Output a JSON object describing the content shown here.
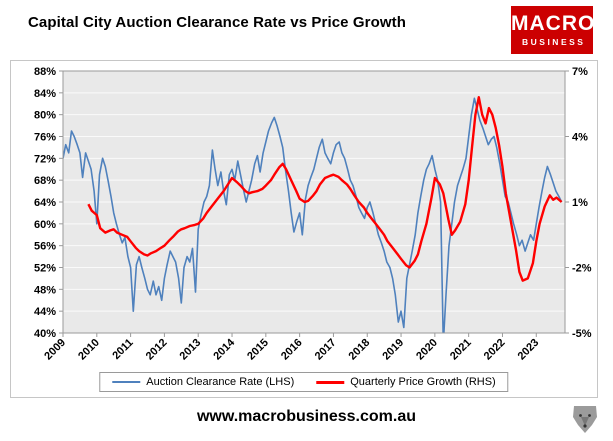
{
  "title": "Capital City Auction Clearance Rate vs Price Growth",
  "logo": {
    "line1": "MACRO",
    "line2": "BUSINESS",
    "bg_color": "#cc0001",
    "text_color": "#ffffff"
  },
  "footer": {
    "url": "www.macrobusiness.com.au"
  },
  "chart_data": {
    "type": "line",
    "title": "Capital City Auction Clearance Rate vs Price Growth",
    "plot_bg": "#e9e9e9",
    "grid_color": "#fafafa",
    "axis_color": "#9a9a9a",
    "legend_position": "bottom",
    "x_axis": {
      "min": 2009,
      "max": 2023.85,
      "ticks": [
        "2009",
        "2010",
        "2011",
        "2012",
        "2013",
        "2014",
        "2015",
        "2016",
        "2017",
        "2018",
        "2019",
        "2020",
        "2021",
        "2022",
        "2023"
      ]
    },
    "left_axis": {
      "min": 40,
      "max": 88,
      "ticks": [
        "40%",
        "44%",
        "48%",
        "52%",
        "56%",
        "60%",
        "64%",
        "68%",
        "72%",
        "76%",
        "80%",
        "84%",
        "88%"
      ]
    },
    "right_axis": {
      "min": -5,
      "max": 7,
      "ticks": [
        "-5%",
        "-2%",
        "1%",
        "4%",
        "7%"
      ]
    },
    "series": [
      {
        "name": "Auction Clearance Rate (LHS)",
        "axis": "left",
        "color": "#4f81bd",
        "width": 1.6,
        "points": [
          [
            2009.0,
            72
          ],
          [
            2009.08,
            74.5
          ],
          [
            2009.17,
            73
          ],
          [
            2009.25,
            77
          ],
          [
            2009.33,
            76
          ],
          [
            2009.42,
            74.5
          ],
          [
            2009.5,
            73
          ],
          [
            2009.58,
            68.5
          ],
          [
            2009.67,
            73
          ],
          [
            2009.75,
            71.5
          ],
          [
            2009.83,
            70
          ],
          [
            2009.92,
            66
          ],
          [
            2010.0,
            60
          ],
          [
            2010.08,
            69
          ],
          [
            2010.17,
            72
          ],
          [
            2010.25,
            70.5
          ],
          [
            2010.33,
            68
          ],
          [
            2010.42,
            65
          ],
          [
            2010.5,
            62
          ],
          [
            2010.58,
            60
          ],
          [
            2010.67,
            58
          ],
          [
            2010.75,
            56.5
          ],
          [
            2010.83,
            57.5
          ],
          [
            2010.92,
            54
          ],
          [
            2011.0,
            52
          ],
          [
            2011.08,
            44
          ],
          [
            2011.17,
            52.5
          ],
          [
            2011.25,
            54
          ],
          [
            2011.33,
            52
          ],
          [
            2011.42,
            50
          ],
          [
            2011.5,
            48
          ],
          [
            2011.58,
            47
          ],
          [
            2011.67,
            49.5
          ],
          [
            2011.75,
            47
          ],
          [
            2011.83,
            48.5
          ],
          [
            2011.92,
            46
          ],
          [
            2012.0,
            50
          ],
          [
            2012.08,
            52.5
          ],
          [
            2012.17,
            55
          ],
          [
            2012.25,
            54
          ],
          [
            2012.33,
            53
          ],
          [
            2012.42,
            50
          ],
          [
            2012.5,
            45.5
          ],
          [
            2012.58,
            52
          ],
          [
            2012.67,
            54
          ],
          [
            2012.75,
            53
          ],
          [
            2012.83,
            55.5
          ],
          [
            2012.92,
            47.5
          ],
          [
            2013.0,
            59
          ],
          [
            2013.08,
            61.5
          ],
          [
            2013.17,
            64
          ],
          [
            2013.25,
            65
          ],
          [
            2013.33,
            67
          ],
          [
            2013.42,
            73.5
          ],
          [
            2013.5,
            70
          ],
          [
            2013.58,
            67
          ],
          [
            2013.67,
            69.5
          ],
          [
            2013.75,
            66
          ],
          [
            2013.83,
            63.5
          ],
          [
            2013.92,
            69
          ],
          [
            2014.0,
            70
          ],
          [
            2014.08,
            68
          ],
          [
            2014.17,
            71.5
          ],
          [
            2014.25,
            69
          ],
          [
            2014.33,
            66.5
          ],
          [
            2014.42,
            64
          ],
          [
            2014.5,
            66
          ],
          [
            2014.58,
            68
          ],
          [
            2014.67,
            71
          ],
          [
            2014.75,
            72.5
          ],
          [
            2014.83,
            69.5
          ],
          [
            2014.92,
            73
          ],
          [
            2015.0,
            75
          ],
          [
            2015.08,
            77
          ],
          [
            2015.17,
            78.5
          ],
          [
            2015.25,
            79.5
          ],
          [
            2015.33,
            78
          ],
          [
            2015.42,
            76
          ],
          [
            2015.5,
            74
          ],
          [
            2015.58,
            70
          ],
          [
            2015.67,
            66
          ],
          [
            2015.75,
            62
          ],
          [
            2015.83,
            58.5
          ],
          [
            2015.92,
            60.5
          ],
          [
            2016.0,
            62
          ],
          [
            2016.08,
            58
          ],
          [
            2016.17,
            64.5
          ],
          [
            2016.25,
            67
          ],
          [
            2016.33,
            68.5
          ],
          [
            2016.42,
            70
          ],
          [
            2016.5,
            72
          ],
          [
            2016.58,
            74
          ],
          [
            2016.67,
            75.5
          ],
          [
            2016.75,
            73
          ],
          [
            2016.83,
            72
          ],
          [
            2016.92,
            71
          ],
          [
            2017.0,
            73
          ],
          [
            2017.08,
            74.5
          ],
          [
            2017.17,
            75
          ],
          [
            2017.25,
            73
          ],
          [
            2017.33,
            72
          ],
          [
            2017.42,
            70
          ],
          [
            2017.5,
            68
          ],
          [
            2017.58,
            67
          ],
          [
            2017.67,
            65
          ],
          [
            2017.75,
            63
          ],
          [
            2017.83,
            62
          ],
          [
            2017.92,
            61
          ],
          [
            2018.0,
            63
          ],
          [
            2018.08,
            64
          ],
          [
            2018.17,
            62
          ],
          [
            2018.25,
            60
          ],
          [
            2018.33,
            58
          ],
          [
            2018.42,
            56.5
          ],
          [
            2018.5,
            55
          ],
          [
            2018.58,
            53
          ],
          [
            2018.67,
            52
          ],
          [
            2018.75,
            50
          ],
          [
            2018.83,
            47
          ],
          [
            2018.92,
            42
          ],
          [
            2019.0,
            44
          ],
          [
            2019.08,
            41
          ],
          [
            2019.17,
            50
          ],
          [
            2019.25,
            52.5
          ],
          [
            2019.33,
            55
          ],
          [
            2019.42,
            58
          ],
          [
            2019.5,
            62
          ],
          [
            2019.58,
            65
          ],
          [
            2019.67,
            68
          ],
          [
            2019.75,
            70
          ],
          [
            2019.83,
            71
          ],
          [
            2019.92,
            72.5
          ],
          [
            2020.0,
            70
          ],
          [
            2020.08,
            68
          ],
          [
            2020.17,
            64
          ],
          [
            2020.25,
            38
          ],
          [
            2020.33,
            47
          ],
          [
            2020.42,
            56
          ],
          [
            2020.5,
            60
          ],
          [
            2020.58,
            64
          ],
          [
            2020.67,
            67
          ],
          [
            2020.75,
            68.5
          ],
          [
            2020.83,
            70
          ],
          [
            2020.92,
            72
          ],
          [
            2021.0,
            76
          ],
          [
            2021.08,
            80
          ],
          [
            2021.17,
            83
          ],
          [
            2021.25,
            81
          ],
          [
            2021.33,
            79
          ],
          [
            2021.42,
            77.5
          ],
          [
            2021.5,
            76
          ],
          [
            2021.58,
            74.5
          ],
          [
            2021.67,
            75.5
          ],
          [
            2021.75,
            76
          ],
          [
            2021.83,
            74
          ],
          [
            2021.92,
            71
          ],
          [
            2022.0,
            68
          ],
          [
            2022.08,
            65
          ],
          [
            2022.17,
            64
          ],
          [
            2022.25,
            62
          ],
          [
            2022.33,
            60
          ],
          [
            2022.42,
            58
          ],
          [
            2022.5,
            56
          ],
          [
            2022.58,
            57
          ],
          [
            2022.67,
            55
          ],
          [
            2022.75,
            56.5
          ],
          [
            2022.83,
            58
          ],
          [
            2022.92,
            57
          ],
          [
            2023.0,
            60
          ],
          [
            2023.08,
            63
          ],
          [
            2023.17,
            66
          ],
          [
            2023.25,
            68.5
          ],
          [
            2023.33,
            70.5
          ],
          [
            2023.42,
            69
          ],
          [
            2023.5,
            67.5
          ],
          [
            2023.58,
            66
          ],
          [
            2023.67,
            65
          ],
          [
            2023.75,
            64
          ]
        ]
      },
      {
        "name": "Quarterly Price Growth (RHS)",
        "axis": "right",
        "color": "#ff0000",
        "width": 2.4,
        "points": [
          [
            2009.75,
            0.9
          ],
          [
            2009.85,
            0.6
          ],
          [
            2010.0,
            0.4
          ],
          [
            2010.1,
            -0.2
          ],
          [
            2010.25,
            -0.4
          ],
          [
            2010.4,
            -0.3
          ],
          [
            2010.5,
            -0.25
          ],
          [
            2010.6,
            -0.4
          ],
          [
            2010.75,
            -0.5
          ],
          [
            2010.9,
            -0.6
          ],
          [
            2011.0,
            -0.8
          ],
          [
            2011.15,
            -1.1
          ],
          [
            2011.25,
            -1.25
          ],
          [
            2011.4,
            -1.4
          ],
          [
            2011.5,
            -1.45
          ],
          [
            2011.6,
            -1.35
          ],
          [
            2011.75,
            -1.25
          ],
          [
            2011.9,
            -1.1
          ],
          [
            2012.0,
            -1.0
          ],
          [
            2012.15,
            -0.75
          ],
          [
            2012.25,
            -0.6
          ],
          [
            2012.4,
            -0.35
          ],
          [
            2012.5,
            -0.25
          ],
          [
            2012.6,
            -0.2
          ],
          [
            2012.75,
            -0.1
          ],
          [
            2012.9,
            -0.05
          ],
          [
            2013.0,
            0.0
          ],
          [
            2013.15,
            0.25
          ],
          [
            2013.25,
            0.5
          ],
          [
            2013.4,
            0.8
          ],
          [
            2013.5,
            1.0
          ],
          [
            2013.6,
            1.2
          ],
          [
            2013.75,
            1.5
          ],
          [
            2013.9,
            1.85
          ],
          [
            2014.0,
            2.1
          ],
          [
            2014.15,
            1.9
          ],
          [
            2014.25,
            1.75
          ],
          [
            2014.4,
            1.5
          ],
          [
            2014.5,
            1.4
          ],
          [
            2014.6,
            1.45
          ],
          [
            2014.75,
            1.5
          ],
          [
            2014.9,
            1.6
          ],
          [
            2015.0,
            1.75
          ],
          [
            2015.15,
            2.0
          ],
          [
            2015.25,
            2.25
          ],
          [
            2015.4,
            2.6
          ],
          [
            2015.5,
            2.75
          ],
          [
            2015.6,
            2.5
          ],
          [
            2015.75,
            2.0
          ],
          [
            2015.9,
            1.5
          ],
          [
            2016.0,
            1.15
          ],
          [
            2016.15,
            1.0
          ],
          [
            2016.25,
            1.05
          ],
          [
            2016.4,
            1.3
          ],
          [
            2016.5,
            1.5
          ],
          [
            2016.6,
            1.8
          ],
          [
            2016.75,
            2.1
          ],
          [
            2016.9,
            2.2
          ],
          [
            2017.0,
            2.25
          ],
          [
            2017.15,
            2.15
          ],
          [
            2017.25,
            2.0
          ],
          [
            2017.4,
            1.8
          ],
          [
            2017.5,
            1.6
          ],
          [
            2017.6,
            1.35
          ],
          [
            2017.75,
            1.0
          ],
          [
            2017.9,
            0.75
          ],
          [
            2018.0,
            0.5
          ],
          [
            2018.15,
            0.2
          ],
          [
            2018.25,
            0.0
          ],
          [
            2018.4,
            -0.3
          ],
          [
            2018.5,
            -0.5
          ],
          [
            2018.6,
            -0.8
          ],
          [
            2018.75,
            -1.1
          ],
          [
            2018.9,
            -1.4
          ],
          [
            2019.0,
            -1.6
          ],
          [
            2019.15,
            -1.9
          ],
          [
            2019.25,
            -2.0
          ],
          [
            2019.4,
            -1.7
          ],
          [
            2019.5,
            -1.4
          ],
          [
            2019.6,
            -0.8
          ],
          [
            2019.75,
            0.0
          ],
          [
            2019.9,
            1.2
          ],
          [
            2020.0,
            2.1
          ],
          [
            2020.15,
            1.8
          ],
          [
            2020.25,
            1.4
          ],
          [
            2020.4,
            0.2
          ],
          [
            2020.5,
            -0.5
          ],
          [
            2020.6,
            -0.3
          ],
          [
            2020.75,
            0.1
          ],
          [
            2020.9,
            0.9
          ],
          [
            2021.0,
            2.0
          ],
          [
            2021.1,
            3.5
          ],
          [
            2021.2,
            5.0
          ],
          [
            2021.3,
            5.8
          ],
          [
            2021.4,
            5.0
          ],
          [
            2021.5,
            4.6
          ],
          [
            2021.6,
            5.3
          ],
          [
            2021.7,
            5.0
          ],
          [
            2021.8,
            4.4
          ],
          [
            2021.9,
            3.6
          ],
          [
            2022.0,
            2.6
          ],
          [
            2022.1,
            1.4
          ],
          [
            2022.25,
            0.1
          ],
          [
            2022.4,
            -1.2
          ],
          [
            2022.5,
            -2.2
          ],
          [
            2022.6,
            -2.6
          ],
          [
            2022.75,
            -2.5
          ],
          [
            2022.9,
            -1.8
          ],
          [
            2023.0,
            -0.8
          ],
          [
            2023.1,
            0.0
          ],
          [
            2023.25,
            0.8
          ],
          [
            2023.4,
            1.3
          ],
          [
            2023.5,
            1.1
          ],
          [
            2023.6,
            1.2
          ],
          [
            2023.75,
            1.0
          ]
        ]
      }
    ]
  }
}
